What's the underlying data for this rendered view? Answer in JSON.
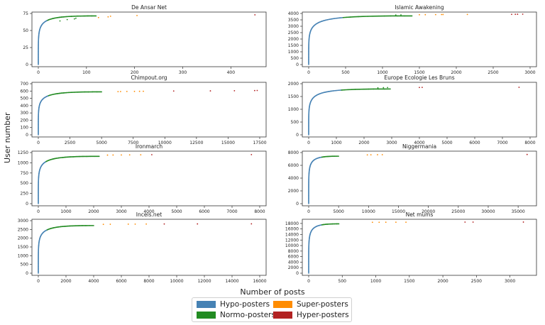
{
  "figure": {
    "ylabel": "User number",
    "xlabel": "Number of posts",
    "legend": [
      {
        "label": "Hypo-posters",
        "color": "#4682b4"
      },
      {
        "label": "Normo-posters",
        "color": "#228b22"
      },
      {
        "label": "Super-posters",
        "color": "#ff8c00"
      },
      {
        "label": "Hyper-posters",
        "color": "#b22222"
      }
    ]
  },
  "chart_data": [
    {
      "type": "scatter",
      "title": "De Ansar Net",
      "xlim": [
        0,
        460
      ],
      "ylim": [
        0,
        75
      ],
      "xticks": [
        0,
        100,
        200,
        300,
        400
      ],
      "yticks": [
        0,
        25,
        50,
        75
      ],
      "n_users": 74,
      "thresholds": [
        20,
        120,
        380
      ],
      "outliers": [
        [
          45,
          64
        ],
        [
          60,
          66
        ],
        [
          75,
          67
        ],
        [
          78,
          68
        ],
        [
          125,
          69
        ],
        [
          145,
          70
        ],
        [
          150,
          71
        ],
        [
          205,
          72
        ],
        [
          450,
          73
        ]
      ]
    },
    {
      "type": "scatter",
      "title": "Islamic Awakening",
      "xlim": [
        0,
        3000
      ],
      "ylim": [
        0,
        4000
      ],
      "xticks": [
        0,
        500,
        1000,
        1500,
        2000,
        2500,
        3000
      ],
      "yticks": [
        0,
        500,
        1000,
        1500,
        2000,
        2500,
        3000,
        3500,
        4000
      ],
      "n_users": 3950,
      "thresholds": [
        480,
        1400,
        2600
      ],
      "outliers": [
        [
          1180,
          3880
        ],
        [
          1250,
          3890
        ],
        [
          1500,
          3900
        ],
        [
          1580,
          3905
        ],
        [
          1720,
          3910
        ],
        [
          1800,
          3915
        ],
        [
          1820,
          3920
        ],
        [
          2150,
          3925
        ],
        [
          2750,
          3930
        ],
        [
          2800,
          3935
        ],
        [
          2830,
          3940
        ],
        [
          2900,
          3945
        ]
      ]
    },
    {
      "type": "scatter",
      "title": "Chimpout.org",
      "xlim": [
        0,
        17500
      ],
      "ylim": [
        0,
        700
      ],
      "xticks": [
        0,
        2500,
        5000,
        7500,
        10000,
        12500,
        15000,
        17500
      ],
      "yticks": [
        0,
        100,
        200,
        300,
        400,
        500,
        600,
        700
      ],
      "n_users": 610,
      "thresholds": [
        800,
        5000,
        10000
      ],
      "outliers": [
        [
          6300,
          592
        ],
        [
          6500,
          593
        ],
        [
          7000,
          594
        ],
        [
          7600,
          595
        ],
        [
          8000,
          596
        ],
        [
          8300,
          597
        ],
        [
          10700,
          600
        ],
        [
          13600,
          602
        ],
        [
          15500,
          604
        ],
        [
          17100,
          606
        ],
        [
          17300,
          608
        ]
      ]
    },
    {
      "type": "scatter",
      "title": "Europe Ecologie Les Bruns",
      "xlim": [
        0,
        8000
      ],
      "ylim": [
        0,
        2000
      ],
      "xticks": [
        0,
        1000,
        2000,
        3000,
        4000,
        5000,
        6000,
        7000,
        8000
      ],
      "yticks": [
        0,
        500,
        1000,
        1500,
        2000
      ],
      "n_users": 1860,
      "thresholds": [
        1150,
        2950,
        3800
      ],
      "outliers": [
        [
          2500,
          1838
        ],
        [
          2700,
          1845
        ],
        [
          2850,
          1850
        ],
        [
          4000,
          1854
        ],
        [
          4100,
          1857
        ],
        [
          7600,
          1860
        ]
      ]
    },
    {
      "type": "scatter",
      "title": "Ironmarch",
      "xlim": [
        0,
        8000
      ],
      "ylim": [
        0,
        1250
      ],
      "xticks": [
        0,
        1000,
        2000,
        3000,
        4000,
        5000,
        6000,
        7000,
        8000
      ],
      "yticks": [
        0,
        250,
        500,
        750,
        1000,
        1250
      ],
      "n_users": 1200,
      "thresholds": [
        280,
        2200,
        4000
      ],
      "outliers": [
        [
          2500,
          1188
        ],
        [
          2700,
          1190
        ],
        [
          3000,
          1192
        ],
        [
          3300,
          1194
        ],
        [
          3700,
          1196
        ],
        [
          4100,
          1198
        ],
        [
          7700,
          1200
        ]
      ]
    },
    {
      "type": "scatter",
      "title": "Niggermania",
      "xlim": [
        0,
        37000
      ],
      "ylim": [
        0,
        8000
      ],
      "xticks": [
        0,
        5000,
        10000,
        15000,
        20000,
        25000,
        30000,
        35000
      ],
      "yticks": [
        0,
        2000,
        4000,
        6000,
        8000
      ],
      "n_users": 7700,
      "thresholds": [
        2200,
        5000,
        14000
      ],
      "outliers": [
        [
          9800,
          7640
        ],
        [
          10400,
          7650
        ],
        [
          11500,
          7660
        ],
        [
          12300,
          7670
        ],
        [
          36500,
          7700
        ]
      ]
    },
    {
      "type": "scatter",
      "title": "Incels.net",
      "xlim": [
        0,
        16000
      ],
      "ylim": [
        0,
        3000
      ],
      "xticks": [
        0,
        2000,
        4000,
        6000,
        8000,
        10000,
        12000,
        14000,
        16000
      ],
      "yticks": [
        0,
        500,
        1000,
        1500,
        2000,
        2500,
        3000
      ],
      "n_users": 2820,
      "thresholds": [
        650,
        4000,
        9000
      ],
      "outliers": [
        [
          4700,
          2790
        ],
        [
          5200,
          2795
        ],
        [
          6500,
          2800
        ],
        [
          7000,
          2803
        ],
        [
          7800,
          2806
        ],
        [
          9100,
          2810
        ],
        [
          11500,
          2815
        ],
        [
          15400,
          2820
        ]
      ]
    },
    {
      "type": "scatter",
      "title": "Net mums",
      "xlim": [
        0,
        3300
      ],
      "ylim": [
        0,
        19000
      ],
      "xticks": [
        0,
        500,
        1000,
        1500,
        2000,
        2500,
        3000
      ],
      "yticks": [
        0,
        2000,
        4000,
        6000,
        8000,
        10000,
        12000,
        14000,
        16000,
        18000
      ],
      "n_users": 18500,
      "thresholds": [
        200,
        450,
        2000
      ],
      "outliers": [
        [
          950,
          18420
        ],
        [
          1050,
          18430
        ],
        [
          1150,
          18440
        ],
        [
          1300,
          18450
        ],
        [
          1450,
          18460
        ],
        [
          2330,
          18480
        ],
        [
          2450,
          18490
        ],
        [
          3200,
          18500
        ]
      ]
    }
  ]
}
